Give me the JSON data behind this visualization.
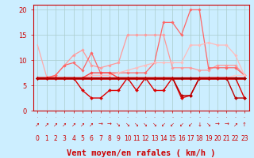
{
  "background_color": "#cceeff",
  "grid_color": "#aacccc",
  "xlabel": "Vent moyen/en rafales ( km/h )",
  "xlabel_color": "#cc0000",
  "xlabel_fontsize": 7.5,
  "tick_color": "#cc0000",
  "xlim": [
    -0.5,
    23.5
  ],
  "ylim": [
    0,
    21
  ],
  "yticks": [
    0,
    5,
    10,
    15,
    20
  ],
  "xticks": [
    0,
    1,
    2,
    3,
    4,
    5,
    6,
    7,
    8,
    9,
    10,
    11,
    12,
    13,
    14,
    15,
    16,
    17,
    18,
    19,
    20,
    21,
    22,
    23
  ],
  "series": [
    {
      "x": [
        0,
        1,
        2,
        3,
        4,
        5,
        6,
        7,
        8,
        9,
        10,
        11,
        12,
        13,
        14,
        15,
        16,
        17,
        18,
        19,
        20,
        21,
        22,
        23
      ],
      "y": [
        13.0,
        6.8,
        6.5,
        6.5,
        6.5,
        6.5,
        6.5,
        6.5,
        6.5,
        6.5,
        6.5,
        6.5,
        6.5,
        6.5,
        6.5,
        6.5,
        6.5,
        6.5,
        6.5,
        6.5,
        6.5,
        6.5,
        6.5,
        6.5
      ],
      "color": "#ffaaaa",
      "lw": 0.9,
      "marker": null
    },
    {
      "x": [
        0,
        1,
        2,
        3,
        4,
        5,
        6,
        7,
        8,
        9,
        10,
        11,
        12,
        13,
        14,
        15,
        16,
        17,
        18,
        19,
        20,
        21,
        22,
        23
      ],
      "y": [
        6.5,
        6.5,
        7.0,
        9.0,
        11.0,
        12.0,
        9.0,
        8.5,
        9.0,
        9.5,
        15.0,
        15.0,
        15.0,
        15.0,
        15.0,
        8.5,
        8.5,
        8.5,
        8.0,
        8.0,
        9.0,
        9.0,
        9.0,
        7.0
      ],
      "color": "#ff9999",
      "lw": 0.9,
      "marker": "D",
      "ms": 1.8
    },
    {
      "x": [
        0,
        1,
        2,
        3,
        4,
        5,
        6,
        7,
        8,
        9,
        10,
        11,
        12,
        13,
        14,
        15,
        16,
        17,
        18,
        19,
        20,
        21,
        22,
        23
      ],
      "y": [
        6.5,
        6.5,
        7.0,
        9.0,
        9.5,
        8.0,
        11.5,
        7.5,
        7.5,
        7.5,
        7.5,
        7.5,
        7.5,
        9.5,
        17.5,
        17.5,
        15.0,
        20.0,
        20.0,
        8.5,
        8.5,
        8.5,
        8.5,
        7.0
      ],
      "color": "#ff6666",
      "lw": 0.9,
      "marker": "D",
      "ms": 1.8
    },
    {
      "x": [
        0,
        1,
        2,
        3,
        4,
        5,
        6,
        7,
        8,
        9,
        10,
        11,
        12,
        13,
        14,
        15,
        16,
        17,
        18,
        19,
        20,
        21,
        22,
        23
      ],
      "y": [
        6.5,
        6.5,
        6.5,
        6.5,
        6.5,
        6.5,
        7.0,
        7.0,
        7.0,
        7.5,
        8.0,
        8.5,
        9.0,
        9.5,
        9.5,
        9.5,
        9.5,
        13.0,
        13.0,
        13.5,
        13.0,
        13.0,
        11.0,
        7.0
      ],
      "color": "#ffbbbb",
      "lw": 0.9,
      "marker": "D",
      "ms": 1.8
    },
    {
      "x": [
        0,
        1,
        2,
        3,
        4,
        5,
        6,
        7,
        8,
        9,
        10,
        11,
        12,
        13,
        14,
        15,
        16,
        17,
        18,
        19,
        20,
        21,
        22,
        23
      ],
      "y": [
        6.5,
        6.5,
        6.5,
        6.5,
        6.5,
        6.5,
        6.5,
        6.5,
        6.5,
        6.5,
        6.5,
        6.5,
        6.5,
        6.5,
        6.5,
        6.5,
        6.5,
        6.5,
        6.5,
        6.5,
        6.5,
        6.5,
        7.0,
        7.0
      ],
      "color": "#ffcccc",
      "lw": 0.9,
      "marker": null
    },
    {
      "x": [
        0,
        1,
        2,
        3,
        4,
        5,
        6,
        7,
        8,
        9,
        10,
        11,
        12,
        13,
        14,
        15,
        16,
        17,
        18,
        19,
        20,
        21,
        22,
        23
      ],
      "y": [
        6.5,
        6.5,
        6.5,
        6.5,
        6.5,
        6.5,
        7.5,
        7.5,
        7.5,
        6.5,
        6.5,
        6.5,
        6.5,
        6.5,
        6.5,
        6.5,
        6.5,
        6.5,
        6.5,
        6.5,
        6.5,
        6.5,
        6.5,
        6.5
      ],
      "color": "#ff4444",
      "lw": 1.0,
      "marker": "D",
      "ms": 1.8
    },
    {
      "x": [
        0,
        1,
        2,
        3,
        4,
        5,
        6,
        7,
        8,
        9,
        10,
        11,
        12,
        13,
        14,
        15,
        16,
        17,
        18,
        19,
        20,
        21,
        22,
        23
      ],
      "y": [
        6.5,
        6.5,
        6.5,
        6.5,
        6.5,
        4.0,
        2.5,
        2.5,
        4.0,
        4.0,
        6.5,
        4.0,
        6.5,
        4.0,
        4.0,
        6.5,
        2.5,
        3.0,
        6.5,
        6.5,
        6.5,
        6.5,
        6.5,
        2.5
      ],
      "color": "#dd0000",
      "lw": 1.0,
      "marker": "D",
      "ms": 2.0
    },
    {
      "x": [
        0,
        1,
        2,
        3,
        4,
        5,
        6,
        7,
        8,
        9,
        10,
        11,
        12,
        13,
        14,
        15,
        16,
        17,
        18,
        19,
        20,
        21,
        22,
        23
      ],
      "y": [
        6.5,
        6.5,
        6.5,
        6.5,
        6.5,
        6.5,
        6.5,
        6.5,
        6.5,
        6.5,
        6.5,
        6.5,
        6.5,
        6.5,
        6.5,
        6.5,
        6.5,
        6.5,
        6.5,
        6.5,
        6.5,
        6.5,
        6.5,
        6.5
      ],
      "color": "#cc0000",
      "lw": 2.0,
      "marker": "D",
      "ms": 2.0
    },
    {
      "x": [
        0,
        1,
        2,
        3,
        4,
        5,
        6,
        7,
        8,
        9,
        10,
        11,
        12,
        13,
        14,
        15,
        16,
        17,
        18,
        19,
        20,
        21,
        22,
        23
      ],
      "y": [
        6.5,
        6.5,
        6.5,
        6.5,
        6.5,
        6.5,
        6.5,
        6.5,
        6.5,
        6.5,
        6.5,
        6.5,
        6.5,
        6.5,
        6.5,
        6.5,
        6.5,
        6.5,
        6.5,
        6.5,
        6.5,
        6.5,
        6.5,
        6.5
      ],
      "color": "#990000",
      "lw": 1.2,
      "marker": "D",
      "ms": 2.0
    },
    {
      "x": [
        0,
        1,
        2,
        3,
        4,
        5,
        6,
        7,
        8,
        9,
        10,
        11,
        12,
        13,
        14,
        15,
        16,
        17,
        18,
        19,
        20,
        21,
        22,
        23
      ],
      "y": [
        6.5,
        6.5,
        6.5,
        6.5,
        6.5,
        6.5,
        6.5,
        6.5,
        6.5,
        6.5,
        6.5,
        6.5,
        6.5,
        6.5,
        6.5,
        6.5,
        3.0,
        3.0,
        6.5,
        6.5,
        6.5,
        6.5,
        2.5,
        2.5
      ],
      "color": "#bb0000",
      "lw": 1.0,
      "marker": "D",
      "ms": 2.0
    }
  ],
  "arrows": [
    "↗",
    "↗",
    "↗",
    "↗",
    "↗",
    "↗",
    "↗",
    "→",
    "→",
    "↘",
    "↘",
    "↘",
    "↘",
    "↘",
    "↙",
    "↙",
    "↙",
    "↙",
    "↓",
    "↘",
    "→",
    "→",
    "↗",
    "↑"
  ],
  "arrow_color": "#cc0000"
}
